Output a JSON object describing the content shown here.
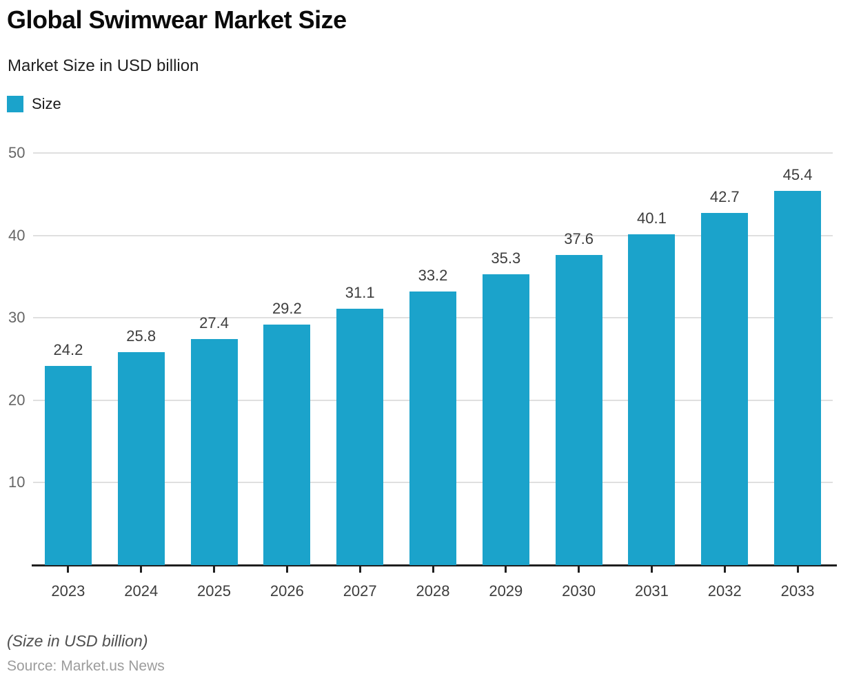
{
  "chart_data": {
    "type": "bar",
    "title": "Global Swimwear Market Size",
    "subtitle": "Market Size in USD billion",
    "categories": [
      "2023",
      "2024",
      "2025",
      "2026",
      "2027",
      "2028",
      "2029",
      "2030",
      "2031",
      "2032",
      "2033"
    ],
    "series": [
      {
        "name": "Size",
        "values": [
          24.2,
          25.8,
          27.4,
          29.2,
          31.1,
          33.2,
          35.3,
          37.6,
          40.1,
          42.7,
          45.4
        ]
      }
    ],
    "xlabel": "",
    "ylabel": "",
    "ylim": [
      0,
      50
    ],
    "yticks": [
      10,
      20,
      30,
      40,
      50
    ],
    "grid": "horizontal",
    "legend_position": "top-left",
    "value_labels": true
  },
  "footer": {
    "note": "(Size in USD billion)",
    "source": "Source: Market.us News"
  },
  "colors": {
    "bar": "#1ba3cb",
    "grid": "#dfdfdf",
    "axis": "#1f1f1f",
    "ytick_label": "#666666",
    "xtick_label": "#3d3d3d",
    "value_label": "#3d3d3d",
    "source": "#9c9c9c"
  }
}
